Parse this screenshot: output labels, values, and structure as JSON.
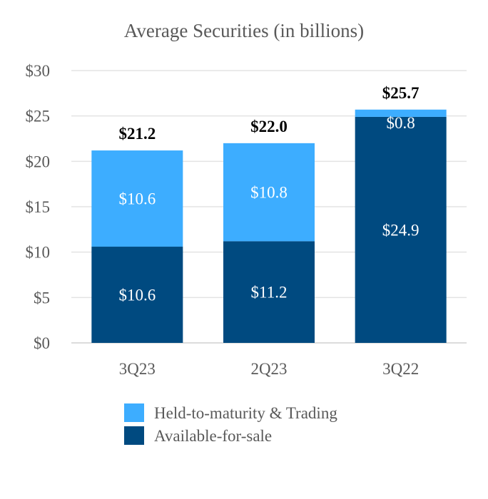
{
  "chart_data": {
    "type": "bar",
    "stacked": true,
    "title": "Average Securities (in billions)",
    "xlabel": "",
    "ylabel": "",
    "ylim": [
      0,
      30
    ],
    "yticks": [
      0,
      5,
      10,
      15,
      20,
      25,
      30
    ],
    "ytick_labels": [
      "$0",
      "$5",
      "$10",
      "$15",
      "$20",
      "$25",
      "$30"
    ],
    "categories": [
      "3Q23",
      "2Q23",
      "3Q22"
    ],
    "series": [
      {
        "name": "Available-for-sale",
        "color": "#004A80",
        "values": [
          10.6,
          11.2,
          24.9
        ],
        "labels": [
          "$10.6",
          "$11.2",
          "$24.9"
        ]
      },
      {
        "name": "Held-to-maturity & Trading",
        "color": "#3DADFF",
        "values": [
          10.6,
          10.8,
          0.8
        ],
        "labels": [
          "$10.6",
          "$10.8",
          "$0.8"
        ]
      }
    ],
    "totals": [
      21.2,
      22.0,
      25.7
    ],
    "total_labels": [
      "$21.2",
      "$22.0",
      "$25.7"
    ],
    "grid": true,
    "legend": [
      "Held-to-maturity & Trading",
      "Available-for-sale"
    ],
    "legend_position": "bottom-center"
  }
}
